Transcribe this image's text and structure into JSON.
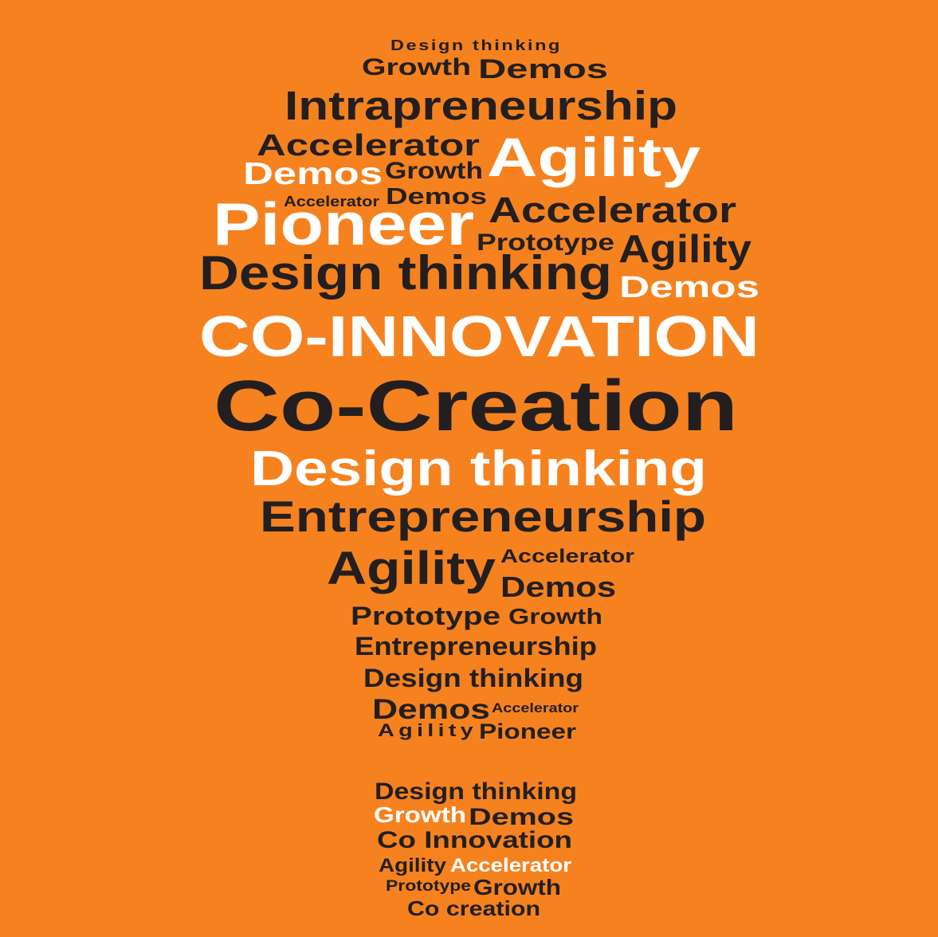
{
  "background_color": "#f5821f",
  "text_colors": {
    "dark": "#231f20",
    "light": "#ffffff"
  },
  "words": [
    {
      "text": "Design thinking",
      "color": "dark"
    },
    {
      "text": "Growth",
      "color": "dark"
    },
    {
      "text": "Demos",
      "color": "dark"
    },
    {
      "text": "Intrapreneurship",
      "color": "dark"
    },
    {
      "text": "Accelerator",
      "color": "dark"
    },
    {
      "text": "Agility",
      "color": "light"
    },
    {
      "text": "Demos",
      "color": "light"
    },
    {
      "text": "Growth",
      "color": "dark"
    },
    {
      "text": "Accelerator",
      "color": "dark"
    },
    {
      "text": "Demos",
      "color": "dark"
    },
    {
      "text": "Pioneer",
      "color": "light"
    },
    {
      "text": "Accelerator",
      "color": "dark"
    },
    {
      "text": "Prototype",
      "color": "dark"
    },
    {
      "text": "Agility",
      "color": "dark"
    },
    {
      "text": "Design thinking",
      "color": "dark"
    },
    {
      "text": "Demos",
      "color": "light"
    },
    {
      "text": "CO-INNOVATION",
      "color": "light"
    },
    {
      "text": "Co-Creation",
      "color": "dark"
    },
    {
      "text": "Design thinking",
      "color": "light"
    },
    {
      "text": "Entrepreneurship",
      "color": "dark"
    },
    {
      "text": "Agility",
      "color": "dark"
    },
    {
      "text": "Accelerator",
      "color": "dark"
    },
    {
      "text": "Demos",
      "color": "dark"
    },
    {
      "text": "Prototype",
      "color": "dark"
    },
    {
      "text": "Growth",
      "color": "dark"
    },
    {
      "text": "Entrepreneurship",
      "color": "dark"
    },
    {
      "text": "Design thinking",
      "color": "dark"
    },
    {
      "text": "Demos",
      "color": "dark"
    },
    {
      "text": "Accelerator",
      "color": "dark"
    },
    {
      "text": "Agility",
      "color": "dark"
    },
    {
      "text": "Pioneer",
      "color": "dark"
    },
    {
      "text": "Design thinking",
      "color": "dark"
    },
    {
      "text": "Growth",
      "color": "light"
    },
    {
      "text": "Demos",
      "color": "dark"
    },
    {
      "text": "Co Innovation",
      "color": "dark"
    },
    {
      "text": "Agility",
      "color": "dark"
    },
    {
      "text": "Accelerator",
      "color": "light"
    },
    {
      "text": "Prototype",
      "color": "dark"
    },
    {
      "text": "Growth",
      "color": "dark"
    },
    {
      "text": "Co creation",
      "color": "dark"
    }
  ]
}
